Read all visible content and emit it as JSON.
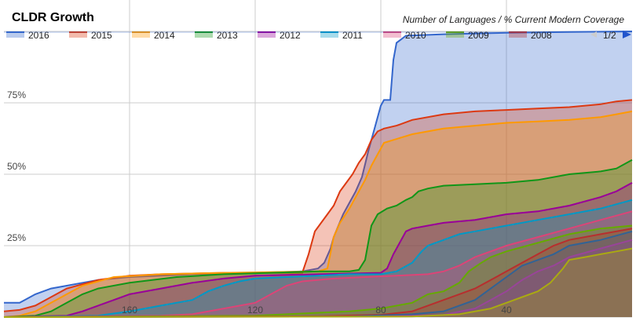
{
  "chart_data": {
    "type": "area",
    "title": "CLDR Growth",
    "subtitle": "Number of Languages / % Current Modern Coverage",
    "xlabel": "",
    "ylabel": "",
    "x_reversed": true,
    "xlim": [
      200,
      0
    ],
    "ylim": [
      0,
      1
    ],
    "x_ticks": [
      "160",
      "120",
      "80",
      "40"
    ],
    "y_ticks": [
      "25%",
      "50%",
      "75%"
    ],
    "grid": true,
    "legend": {
      "position": "top",
      "pager": "1/2"
    },
    "series": [
      {
        "name": "2016",
        "color": "#3366cc",
        "points": [
          [
            200,
            0.05
          ],
          [
            195,
            0.05
          ],
          [
            190,
            0.08
          ],
          [
            185,
            0.1
          ],
          [
            180,
            0.11
          ],
          [
            175,
            0.12
          ],
          [
            170,
            0.13
          ],
          [
            160,
            0.14
          ],
          [
            150,
            0.145
          ],
          [
            140,
            0.15
          ],
          [
            120,
            0.155
          ],
          [
            105,
            0.16
          ],
          [
            100,
            0.17
          ],
          [
            98,
            0.19
          ],
          [
            96,
            0.24
          ],
          [
            95,
            0.28
          ],
          [
            92,
            0.36
          ],
          [
            90,
            0.4
          ],
          [
            88,
            0.44
          ],
          [
            86,
            0.49
          ],
          [
            84,
            0.58
          ],
          [
            82,
            0.66
          ],
          [
            81,
            0.7
          ],
          [
            80,
            0.74
          ],
          [
            79,
            0.76
          ],
          [
            77,
            0.76
          ],
          [
            76,
            0.9
          ],
          [
            75,
            0.96
          ],
          [
            72,
            0.985
          ],
          [
            60,
            0.99
          ],
          [
            40,
            0.995
          ],
          [
            20,
            0.998
          ],
          [
            0,
            1.0
          ]
        ]
      },
      {
        "name": "2015",
        "color": "#dc3912",
        "points": [
          [
            200,
            0.02
          ],
          [
            195,
            0.025
          ],
          [
            190,
            0.04
          ],
          [
            185,
            0.07
          ],
          [
            180,
            0.1
          ],
          [
            170,
            0.13
          ],
          [
            160,
            0.145
          ],
          [
            150,
            0.15
          ],
          [
            130,
            0.155
          ],
          [
            105,
            0.155
          ],
          [
            103,
            0.22
          ],
          [
            101,
            0.3
          ],
          [
            99,
            0.33
          ],
          [
            97,
            0.36
          ],
          [
            95,
            0.39
          ],
          [
            93,
            0.44
          ],
          [
            91,
            0.47
          ],
          [
            89,
            0.5
          ],
          [
            87,
            0.54
          ],
          [
            85,
            0.57
          ],
          [
            83,
            0.62
          ],
          [
            81,
            0.65
          ],
          [
            79,
            0.66
          ],
          [
            75,
            0.67
          ],
          [
            70,
            0.69
          ],
          [
            60,
            0.71
          ],
          [
            50,
            0.72
          ],
          [
            40,
            0.725
          ],
          [
            30,
            0.73
          ],
          [
            20,
            0.735
          ],
          [
            10,
            0.745
          ],
          [
            5,
            0.755
          ],
          [
            0,
            0.76
          ]
        ]
      },
      {
        "name": "2014",
        "color": "#ff9900",
        "points": [
          [
            200,
            0.0
          ],
          [
            195,
            0.005
          ],
          [
            190,
            0.02
          ],
          [
            185,
            0.05
          ],
          [
            180,
            0.08
          ],
          [
            175,
            0.11
          ],
          [
            165,
            0.14
          ],
          [
            150,
            0.15
          ],
          [
            130,
            0.155
          ],
          [
            100,
            0.16
          ],
          [
            97,
            0.17
          ],
          [
            95,
            0.28
          ],
          [
            93,
            0.33
          ],
          [
            90,
            0.38
          ],
          [
            87,
            0.44
          ],
          [
            85,
            0.48
          ],
          [
            83,
            0.53
          ],
          [
            81,
            0.57
          ],
          [
            79,
            0.61
          ],
          [
            76,
            0.62
          ],
          [
            70,
            0.64
          ],
          [
            60,
            0.66
          ],
          [
            50,
            0.67
          ],
          [
            40,
            0.68
          ],
          [
            30,
            0.685
          ],
          [
            20,
            0.69
          ],
          [
            10,
            0.7
          ],
          [
            5,
            0.71
          ],
          [
            0,
            0.72
          ]
        ]
      },
      {
        "name": "2013",
        "color": "#109618",
        "points": [
          [
            200,
            0.0
          ],
          [
            190,
            0.005
          ],
          [
            185,
            0.02
          ],
          [
            180,
            0.05
          ],
          [
            175,
            0.08
          ],
          [
            170,
            0.1
          ],
          [
            160,
            0.12
          ],
          [
            145,
            0.14
          ],
          [
            130,
            0.15
          ],
          [
            100,
            0.16
          ],
          [
            90,
            0.16
          ],
          [
            87,
            0.165
          ],
          [
            85,
            0.2
          ],
          [
            83,
            0.32
          ],
          [
            81,
            0.36
          ],
          [
            78,
            0.38
          ],
          [
            75,
            0.39
          ],
          [
            72,
            0.41
          ],
          [
            70,
            0.42
          ],
          [
            68,
            0.44
          ],
          [
            65,
            0.45
          ],
          [
            60,
            0.46
          ],
          [
            50,
            0.465
          ],
          [
            40,
            0.47
          ],
          [
            30,
            0.48
          ],
          [
            20,
            0.5
          ],
          [
            10,
            0.51
          ],
          [
            5,
            0.52
          ],
          [
            0,
            0.55
          ]
        ]
      },
      {
        "name": "2012",
        "color": "#990099",
        "points": [
          [
            200,
            0.0
          ],
          [
            180,
            0.005
          ],
          [
            175,
            0.02
          ],
          [
            170,
            0.04
          ],
          [
            165,
            0.06
          ],
          [
            160,
            0.08
          ],
          [
            150,
            0.1
          ],
          [
            140,
            0.12
          ],
          [
            130,
            0.135
          ],
          [
            120,
            0.145
          ],
          [
            100,
            0.15
          ],
          [
            80,
            0.155
          ],
          [
            78,
            0.17
          ],
          [
            76,
            0.22
          ],
          [
            74,
            0.26
          ],
          [
            72,
            0.3
          ],
          [
            70,
            0.31
          ],
          [
            65,
            0.32
          ],
          [
            60,
            0.33
          ],
          [
            50,
            0.34
          ],
          [
            40,
            0.36
          ],
          [
            30,
            0.37
          ],
          [
            20,
            0.39
          ],
          [
            10,
            0.42
          ],
          [
            5,
            0.44
          ],
          [
            0,
            0.47
          ]
        ]
      },
      {
        "name": "2011",
        "color": "#0099c6",
        "points": [
          [
            200,
            0.0
          ],
          [
            170,
            0.005
          ],
          [
            160,
            0.02
          ],
          [
            150,
            0.04
          ],
          [
            140,
            0.06
          ],
          [
            135,
            0.09
          ],
          [
            130,
            0.11
          ],
          [
            125,
            0.125
          ],
          [
            120,
            0.135
          ],
          [
            110,
            0.14
          ],
          [
            100,
            0.145
          ],
          [
            90,
            0.15
          ],
          [
            80,
            0.15
          ],
          [
            75,
            0.16
          ],
          [
            70,
            0.19
          ],
          [
            67,
            0.23
          ],
          [
            65,
            0.25
          ],
          [
            60,
            0.27
          ],
          [
            55,
            0.29
          ],
          [
            50,
            0.3
          ],
          [
            40,
            0.32
          ],
          [
            30,
            0.34
          ],
          [
            20,
            0.36
          ],
          [
            10,
            0.38
          ],
          [
            0,
            0.41
          ]
        ]
      },
      {
        "name": "2010",
        "color": "#dd4477",
        "points": [
          [
            200,
            0.0
          ],
          [
            150,
            0.005
          ],
          [
            140,
            0.01
          ],
          [
            130,
            0.03
          ],
          [
            120,
            0.05
          ],
          [
            115,
            0.08
          ],
          [
            110,
            0.11
          ],
          [
            105,
            0.125
          ],
          [
            95,
            0.135
          ],
          [
            85,
            0.14
          ],
          [
            75,
            0.145
          ],
          [
            65,
            0.15
          ],
          [
            60,
            0.16
          ],
          [
            55,
            0.18
          ],
          [
            50,
            0.21
          ],
          [
            45,
            0.23
          ],
          [
            40,
            0.25
          ],
          [
            30,
            0.28
          ],
          [
            20,
            0.31
          ],
          [
            10,
            0.34
          ],
          [
            0,
            0.37
          ]
        ]
      },
      {
        "name": "2009",
        "color": "#66aa00",
        "points": [
          [
            200,
            0.0
          ],
          [
            120,
            0.005
          ],
          [
            110,
            0.01
          ],
          [
            100,
            0.015
          ],
          [
            90,
            0.02
          ],
          [
            80,
            0.03
          ],
          [
            70,
            0.05
          ],
          [
            65,
            0.08
          ],
          [
            60,
            0.09
          ],
          [
            55,
            0.12
          ],
          [
            52,
            0.16
          ],
          [
            48,
            0.19
          ],
          [
            45,
            0.21
          ],
          [
            40,
            0.23
          ],
          [
            30,
            0.26
          ],
          [
            20,
            0.29
          ],
          [
            10,
            0.31
          ],
          [
            0,
            0.32
          ]
        ]
      },
      {
        "name": "2008",
        "color": "#b82e2e",
        "points": [
          [
            200,
            0.0
          ],
          [
            100,
            0.003
          ],
          [
            80,
            0.008
          ],
          [
            70,
            0.02
          ],
          [
            65,
            0.04
          ],
          [
            60,
            0.06
          ],
          [
            55,
            0.08
          ],
          [
            50,
            0.1
          ],
          [
            45,
            0.13
          ],
          [
            40,
            0.16
          ],
          [
            35,
            0.19
          ],
          [
            30,
            0.22
          ],
          [
            25,
            0.25
          ],
          [
            20,
            0.27
          ],
          [
            10,
            0.29
          ],
          [
            0,
            0.31
          ]
        ]
      },
      {
        "name": "",
        "color": "#316395",
        "points": [
          [
            200,
            0.0
          ],
          [
            90,
            0.002
          ],
          [
            70,
            0.01
          ],
          [
            60,
            0.02
          ],
          [
            55,
            0.04
          ],
          [
            50,
            0.06
          ],
          [
            45,
            0.1
          ],
          [
            40,
            0.14
          ],
          [
            35,
            0.18
          ],
          [
            30,
            0.2
          ],
          [
            25,
            0.22
          ],
          [
            20,
            0.25
          ],
          [
            10,
            0.27
          ],
          [
            0,
            0.3
          ]
        ]
      },
      {
        "name": "",
        "color": "#994499",
        "points": [
          [
            200,
            0.0
          ],
          [
            80,
            0.002
          ],
          [
            60,
            0.008
          ],
          [
            50,
            0.03
          ],
          [
            45,
            0.06
          ],
          [
            40,
            0.09
          ],
          [
            35,
            0.13
          ],
          [
            30,
            0.16
          ],
          [
            25,
            0.18
          ],
          [
            20,
            0.21
          ],
          [
            10,
            0.24
          ],
          [
            0,
            0.27
          ]
        ]
      },
      {
        "name": "",
        "color": "#aaaa11",
        "points": [
          [
            200,
            0.0
          ],
          [
            70,
            0.002
          ],
          [
            55,
            0.01
          ],
          [
            45,
            0.03
          ],
          [
            40,
            0.05
          ],
          [
            35,
            0.07
          ],
          [
            30,
            0.09
          ],
          [
            26,
            0.12
          ],
          [
            22,
            0.17
          ],
          [
            20,
            0.2
          ],
          [
            15,
            0.21
          ],
          [
            10,
            0.22
          ],
          [
            5,
            0.23
          ],
          [
            0,
            0.24
          ]
        ]
      }
    ]
  }
}
